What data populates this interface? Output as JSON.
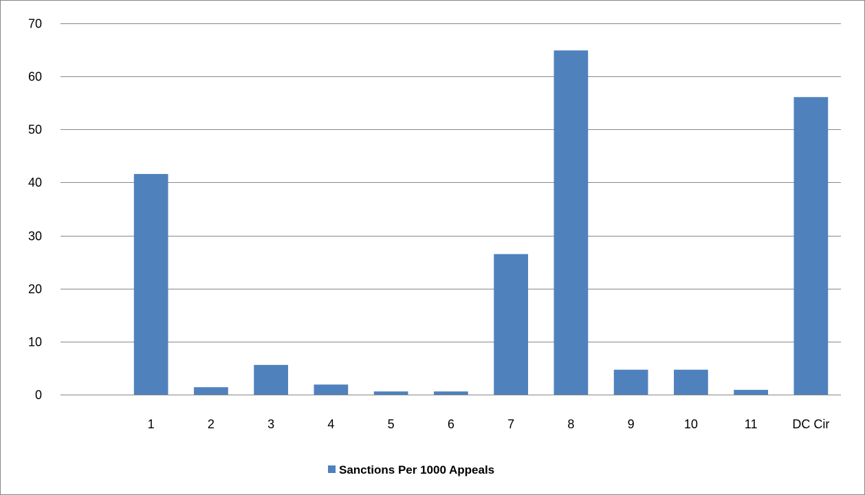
{
  "chart_data": {
    "type": "bar",
    "title": "",
    "xlabel": "",
    "ylabel": "",
    "categories": [
      "1",
      "2",
      "3",
      "4",
      "5",
      "6",
      "7",
      "8",
      "9",
      "10",
      "11",
      "DC Cir"
    ],
    "series": [
      {
        "name": "Sanctions Per 1000 Appeals",
        "color": "#4F81BD",
        "values": [
          41.6,
          1.4,
          5.6,
          1.9,
          0.6,
          0.6,
          26.5,
          64.9,
          4.7,
          4.7,
          0.9,
          56.1
        ]
      }
    ],
    "ylim": [
      0,
      70
    ],
    "yticks": [
      0,
      10,
      20,
      30,
      40,
      50,
      60,
      70
    ],
    "grid": true,
    "legend_position": "bottom"
  },
  "colors": {
    "bar": "#4F81BD",
    "gridline": "#868686",
    "border": "#868686"
  }
}
